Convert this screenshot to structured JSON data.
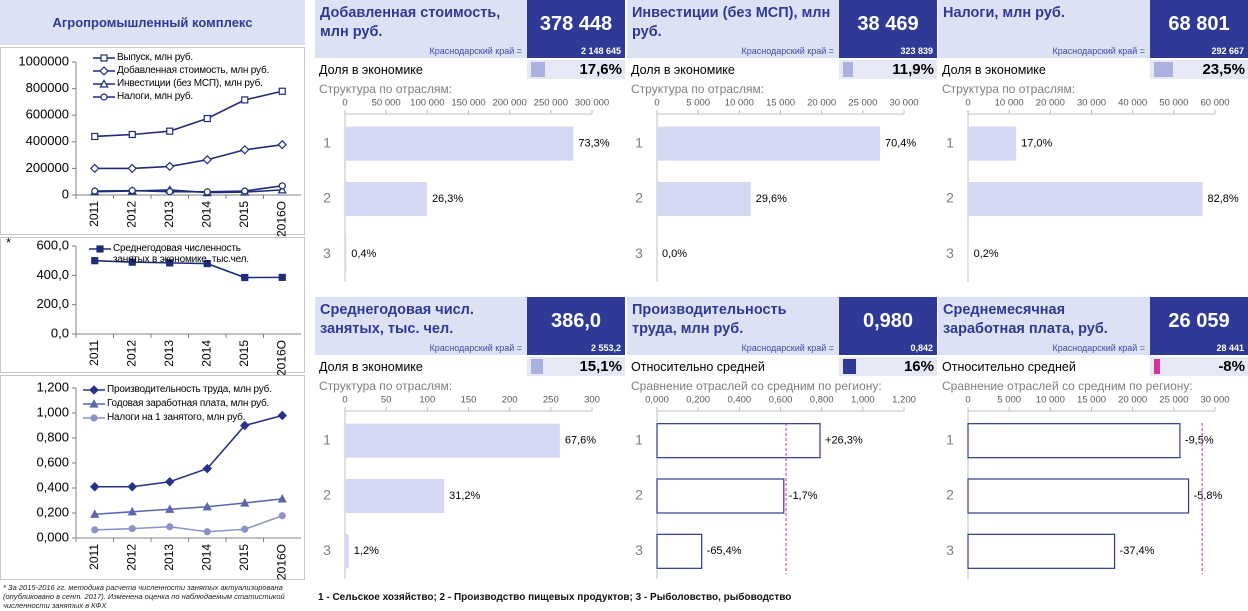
{
  "title": "Агропромышленный комплекс",
  "chart_data": [
    {
      "type": "line",
      "categories": [
        "2011",
        "2012",
        "2013",
        "2014",
        "2015",
        "2016О"
      ],
      "ylim": [
        0,
        1000000
      ],
      "yticks": [
        0,
        200000,
        400000,
        600000,
        800000,
        1000000
      ],
      "series": [
        {
          "name": "Выпуск, млн руб.",
          "color": "#1f2d7a",
          "marker": "square",
          "open": true,
          "values": [
            440000,
            455000,
            480000,
            575000,
            715000,
            780000
          ]
        },
        {
          "name": "Добавленная стоимость, млн руб.",
          "color": "#1f2d7a",
          "marker": "diamond",
          "open": true,
          "values": [
            200000,
            200000,
            215000,
            265000,
            340000,
            378448
          ]
        },
        {
          "name": "Инвестиции (без МСП), млн руб.",
          "color": "#1f2d7a",
          "marker": "triangle",
          "open": true,
          "values": [
            25000,
            30000,
            38000,
            18000,
            22000,
            38469
          ]
        },
        {
          "name": "Налоги, млн руб.",
          "color": "#1f2d7a",
          "marker": "circle",
          "open": true,
          "values": [
            30000,
            33000,
            25000,
            24000,
            30000,
            68801
          ]
        }
      ]
    },
    {
      "type": "line",
      "note_mark": "*",
      "categories": [
        "2011",
        "2012",
        "2013",
        "2014",
        "2015",
        "2016О"
      ],
      "ylim": [
        0,
        600
      ],
      "yticks": [
        {
          "value": 0,
          "label": "0,0"
        },
        {
          "value": 200,
          "label": "200,0"
        },
        {
          "value": 400,
          "label": "400,0"
        },
        {
          "value": 600,
          "label": "600,0"
        }
      ],
      "series": [
        {
          "name": "Среднегодовая численность занятых в экономике, тыс.чел.",
          "color": "#1f2d7a",
          "marker": "square",
          "open": false,
          "values": [
            500,
            490,
            485,
            480,
            385,
            386
          ]
        }
      ]
    },
    {
      "type": "line",
      "categories": [
        "2011",
        "2012",
        "2013",
        "2014",
        "2015",
        "2016О"
      ],
      "ylim": [
        0,
        1.2
      ],
      "yticks": [
        {
          "value": 0,
          "label": "0,000"
        },
        {
          "value": 0.2,
          "label": "0,200"
        },
        {
          "value": 0.4,
          "label": "0,400"
        },
        {
          "value": 0.6,
          "label": "0,600"
        },
        {
          "value": 0.8,
          "label": "0,800"
        },
        {
          "value": 1,
          "label": "1,000"
        },
        {
          "value": 1.2,
          "label": "1,200"
        }
      ],
      "series": [
        {
          "name": "Производительность труда, млн руб.",
          "color": "#26328a",
          "marker": "diamond",
          "open": false,
          "values": [
            0.41,
            0.41,
            0.45,
            0.555,
            0.9,
            0.98
          ]
        },
        {
          "name": "Годовая заработная плата, млн руб.",
          "color": "#5a67b0",
          "marker": "triangle",
          "open": false,
          "values": [
            0.19,
            0.21,
            0.23,
            0.25,
            0.28,
            0.313
          ]
        },
        {
          "name": "Налоги на 1 занятого, млн руб.",
          "color": "#8c93c8",
          "marker": "circle",
          "open": false,
          "values": [
            0.065,
            0.075,
            0.09,
            0.05,
            0.07,
            0.178
          ]
        }
      ]
    },
    {
      "type": "bar_h",
      "title": "Добавленная стоимость, млн руб.",
      "headline": "378 448",
      "region_label": "Краснодарский край =",
      "region_value": "2 148 645",
      "share_text": "Доля в экономике",
      "share": 17.6,
      "share_label": "17,6%",
      "share_color": "#aab0e0",
      "subtitle": "Структура по отраслям:",
      "categories": [
        "1",
        "2",
        "3"
      ],
      "values": [
        277402,
        99532,
        1514
      ],
      "labels": [
        "73,3%",
        "26,3%",
        "0,4%"
      ],
      "color": "#d4d7f2",
      "xlim": [
        0,
        300000
      ],
      "xticks": [
        0,
        {
          "value": 50000,
          "label": "50 000"
        },
        {
          "value": 100000,
          "label": "100 000"
        },
        {
          "value": 150000,
          "label": "150 000"
        },
        {
          "value": 200000,
          "label": "200 000"
        },
        {
          "value": 250000,
          "label": "250 000"
        },
        {
          "value": 300000,
          "label": "300 000"
        }
      ]
    },
    {
      "type": "bar_h",
      "title": "Инвестиции (без МСП), млн руб.",
      "headline": "38 469",
      "region_label": "Краснодарский край =",
      "region_value": "323 839",
      "share_text": "Доля в экономике",
      "share": 11.9,
      "share_label": "11,9%",
      "share_color": "#aab0e0",
      "subtitle": "Структура по отраслям:",
      "categories": [
        "1",
        "2",
        "3"
      ],
      "values": [
        27082,
        11387,
        0
      ],
      "labels": [
        "70,4%",
        "29,6%",
        "0,0%"
      ],
      "color": "#d4d7f2",
      "xlim": [
        0,
        30000
      ],
      "xticks": [
        0,
        {
          "value": 5000,
          "label": "5 000"
        },
        {
          "value": 10000,
          "label": "10 000"
        },
        {
          "value": 15000,
          "label": "15 000"
        },
        {
          "value": 20000,
          "label": "20 000"
        },
        {
          "value": 25000,
          "label": "25 000"
        },
        {
          "value": 30000,
          "label": "30 000"
        }
      ]
    },
    {
      "type": "bar_h",
      "title": "Налоги, млн руб.",
      "headline": "68 801",
      "region_label": "Краснодарский край =",
      "region_value": "292 667",
      "share_text": "Доля в экономике",
      "share": 23.5,
      "share_label": "23,5%",
      "share_color": "#aab0e0",
      "subtitle": "Структура по отраслям:",
      "categories": [
        "1",
        "2",
        "3"
      ],
      "values": [
        11696,
        56967,
        138
      ],
      "labels": [
        "17,0%",
        "82,8%",
        "0,2%"
      ],
      "color": "#d4d7f2",
      "xlim": [
        0,
        60000
      ],
      "xticks": [
        0,
        {
          "value": 10000,
          "label": "10 000"
        },
        {
          "value": 20000,
          "label": "20 000"
        },
        {
          "value": 30000,
          "label": "30 000"
        },
        {
          "value": 40000,
          "label": "40 000"
        },
        {
          "value": 50000,
          "label": "50 000"
        },
        {
          "value": 60000,
          "label": "60 000"
        }
      ]
    },
    {
      "type": "bar_h",
      "title": "Среднегодовая числ. занятых, тыс. чел.",
      "headline": "386,0",
      "region_label": "Краснодарский край =",
      "region_value": "2 553,2",
      "share_text": "Доля в экономике",
      "share": 15.1,
      "share_label": "15,1%",
      "share_color": "#aab0e0",
      "subtitle": "Структура по отраслям:",
      "categories": [
        "1",
        "2",
        "3"
      ],
      "values": [
        261,
        120.4,
        4.6
      ],
      "labels": [
        "67,6%",
        "31,2%",
        "1,2%"
      ],
      "color": "#d4d7f2",
      "xlim": [
        0,
        300
      ],
      "xticks": [
        0,
        50,
        100,
        150,
        200,
        250,
        300
      ]
    },
    {
      "type": "bar_h",
      "title": "Производительность труда, млн руб.",
      "headline": "0,980",
      "region_label": "Краснодарский край =",
      "region_value": "0,842",
      "share_text": "Относительно средней",
      "share": 16,
      "share_label": "16%",
      "share_color": "#2e3a96",
      "subtitle": "Сравнение отраслей со средним по региону:",
      "categories": [
        "1",
        "2",
        "3"
      ],
      "values": [
        0.792,
        0.616,
        0.217
      ],
      "labels": [
        "+26,3%",
        "-1,7%",
        "-65,4%"
      ],
      "color": "#ffffff",
      "stroke": "#2e3a96",
      "reference": 0.627,
      "reference_color": "#d6339a",
      "xlim": [
        0,
        1.2
      ],
      "xticks": [
        {
          "value": 0,
          "label": "0,000"
        },
        {
          "value": 0.2,
          "label": "0,200"
        },
        {
          "value": 0.4,
          "label": "0,400"
        },
        {
          "value": 0.6,
          "label": "0,600"
        },
        {
          "value": 0.8,
          "label": "0,800"
        },
        {
          "value": 1,
          "label": "1,000"
        },
        {
          "value": 1.2,
          "label": "1,200"
        }
      ]
    },
    {
      "type": "bar_h",
      "title": "Среднемесячная заработная плата, руб.",
      "headline": "26 059",
      "region_label": "Краснодарский край =",
      "region_value": "28 441",
      "share_text": "Относительно средней",
      "share": -8,
      "share_label": "-8%",
      "share_color": "#d6339a",
      "subtitle": "Сравнение отраслей со средним по региону:",
      "categories": [
        "1",
        "2",
        "3"
      ],
      "values": [
        25739,
        26791,
        17804
      ],
      "labels": [
        "-9,5%",
        "-5,8%",
        "-37,4%"
      ],
      "color": "#ffffff",
      "stroke": "#2e3a96",
      "reference": 28441,
      "reference_color": "#d6339a",
      "xlim": [
        0,
        30000
      ],
      "xticks": [
        0,
        {
          "value": 5000,
          "label": "5 000"
        },
        {
          "value": 10000,
          "label": "10 000"
        },
        {
          "value": 15000,
          "label": "15 000"
        },
        {
          "value": 20000,
          "label": "20 000"
        },
        {
          "value": 25000,
          "label": "25 000"
        },
        {
          "value": 30000,
          "label": "30 000"
        }
      ]
    }
  ],
  "footnote": "* За 2015-2016 гг. методика расчета численности занятых актуализирована (опубликовано в сент. 2017). Изменена оценка по наблюдаемым статистикой численности занятых в КФХ",
  "sector_legend": "1 - Сельское хозяйство; 2 - Производство пищевых продуктов; 3 - Рыболовство, рыбоводство"
}
